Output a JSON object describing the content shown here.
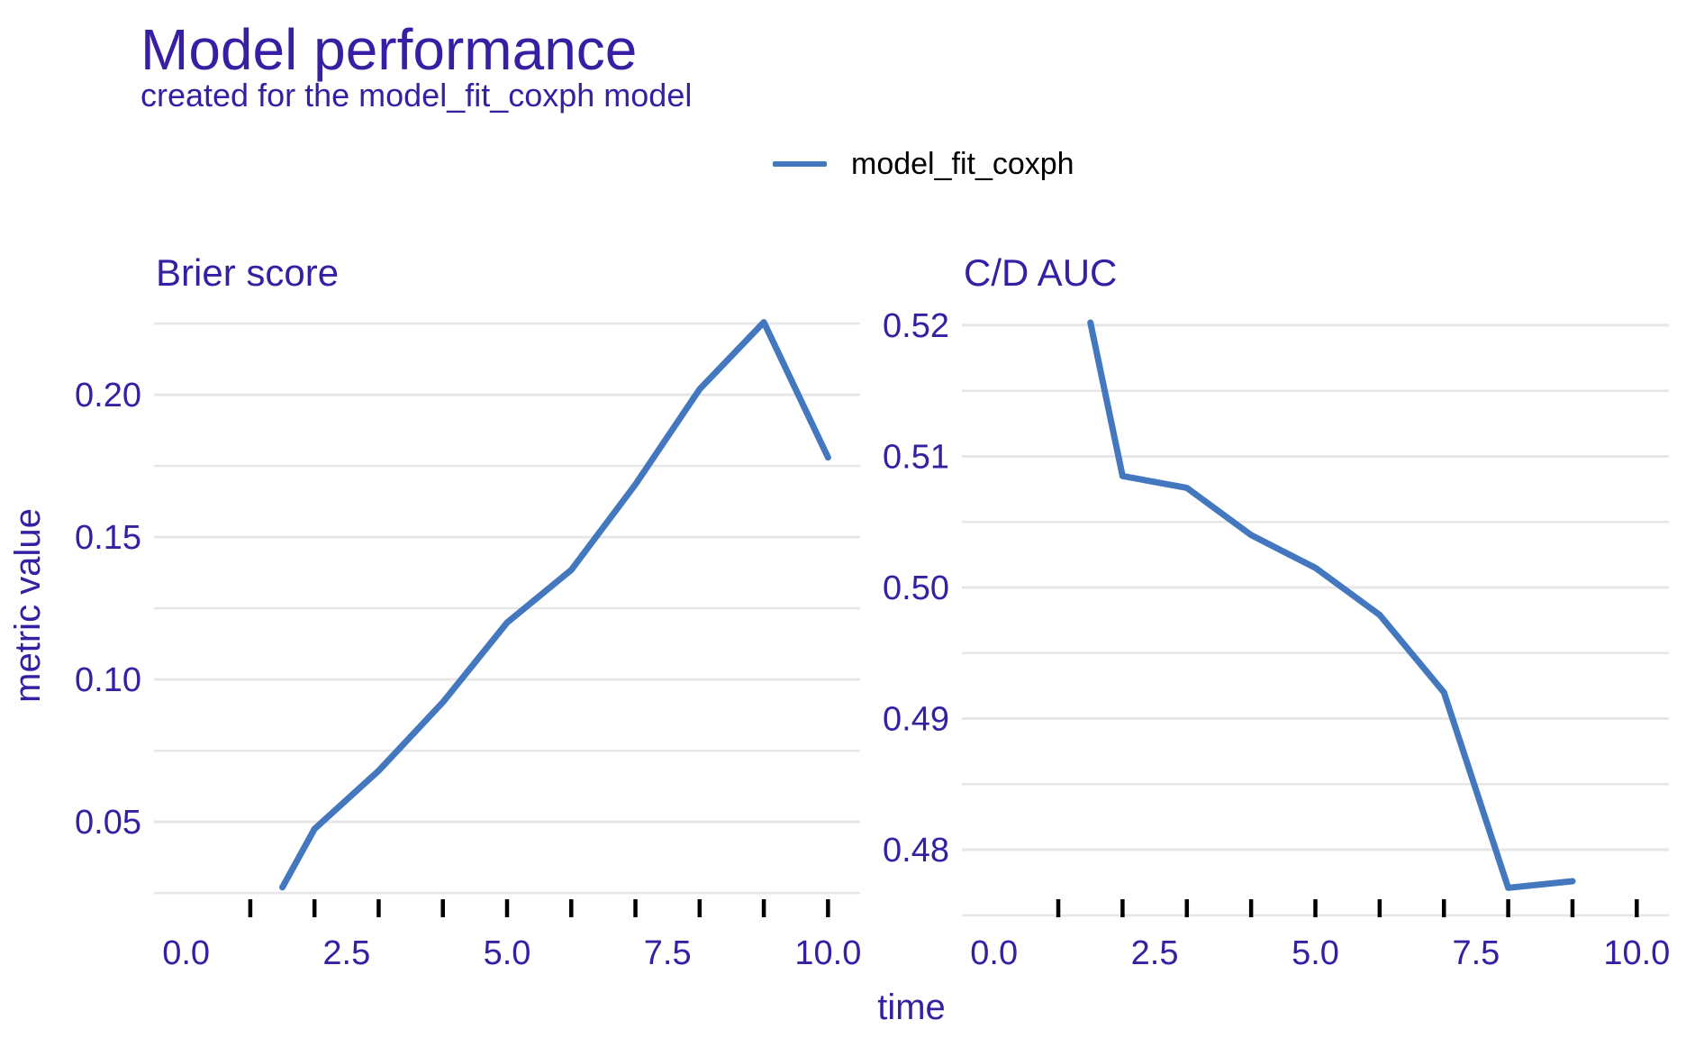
{
  "header": {
    "title": "Model performance",
    "subtitle": "created for the model_fit_coxph model"
  },
  "legend": {
    "label": "model_fit_coxph"
  },
  "axes": {
    "x_title": "time",
    "y_title": "metric value"
  },
  "colors": {
    "text_accent": "#371ea3",
    "line": "#4378bf",
    "grid": "#e6e6e6",
    "tick": "#000000",
    "legend_text": "#000000"
  },
  "chart_data": [
    {
      "type": "line",
      "panel": "brier",
      "title": "Brier score",
      "xlabel": "time",
      "ylabel": "metric value",
      "legend_position": "top",
      "grid": true,
      "xlim": [
        -0.5,
        10.5
      ],
      "ylim": [
        0.0165,
        0.2355
      ],
      "x_tick_positions": [
        0,
        2.5,
        5,
        7.5,
        10
      ],
      "x_tick_labels": [
        "0.0",
        "2.5",
        "5.0",
        "7.5",
        "10.0"
      ],
      "x_axis_ticks": [
        1,
        2,
        3,
        4,
        5,
        6,
        7,
        8,
        9,
        10
      ],
      "y_major": [
        0.05,
        0.1,
        0.15,
        0.2
      ],
      "y_tick_labels": [
        "0.05",
        "0.10",
        "0.15",
        "0.20"
      ],
      "y_minor": [
        0.025,
        0.075,
        0.125,
        0.175,
        0.225
      ],
      "series": [
        {
          "name": "model_fit_coxph",
          "x": [
            1.5,
            2,
            3,
            4,
            5,
            6,
            7,
            8,
            9,
            10
          ],
          "values": [
            0.027,
            0.0475,
            0.068,
            0.092,
            0.12,
            0.1385,
            0.1685,
            0.202,
            0.2255,
            0.178
          ]
        }
      ]
    },
    {
      "type": "line",
      "panel": "cd_auc",
      "title": "C/D AUC",
      "xlabel": "time",
      "ylabel": "metric value",
      "legend_position": "top",
      "grid": true,
      "xlim": [
        -0.5,
        10.5
      ],
      "ylim": [
        0.4743,
        0.5224
      ],
      "x_tick_positions": [
        0,
        2.5,
        5,
        7.5,
        10
      ],
      "x_tick_labels": [
        "0.0",
        "2.5",
        "5.0",
        "7.5",
        "10.0"
      ],
      "x_axis_ticks": [
        1,
        2,
        3,
        4,
        5,
        6,
        7,
        8,
        9,
        10
      ],
      "y_major": [
        0.48,
        0.49,
        0.5,
        0.51,
        0.52
      ],
      "y_tick_labels": [
        "0.48",
        "0.49",
        "0.50",
        "0.51",
        "0.52"
      ],
      "y_minor": [
        0.475,
        0.485,
        0.495,
        0.505,
        0.515
      ],
      "series": [
        {
          "name": "model_fit_coxph",
          "x": [
            1.5,
            2,
            3,
            4,
            5,
            6,
            7,
            8,
            9
          ],
          "values": [
            0.5202,
            0.5085,
            0.5076,
            0.504,
            0.5015,
            0.4979,
            0.492,
            0.4771,
            0.4776
          ]
        }
      ]
    }
  ]
}
